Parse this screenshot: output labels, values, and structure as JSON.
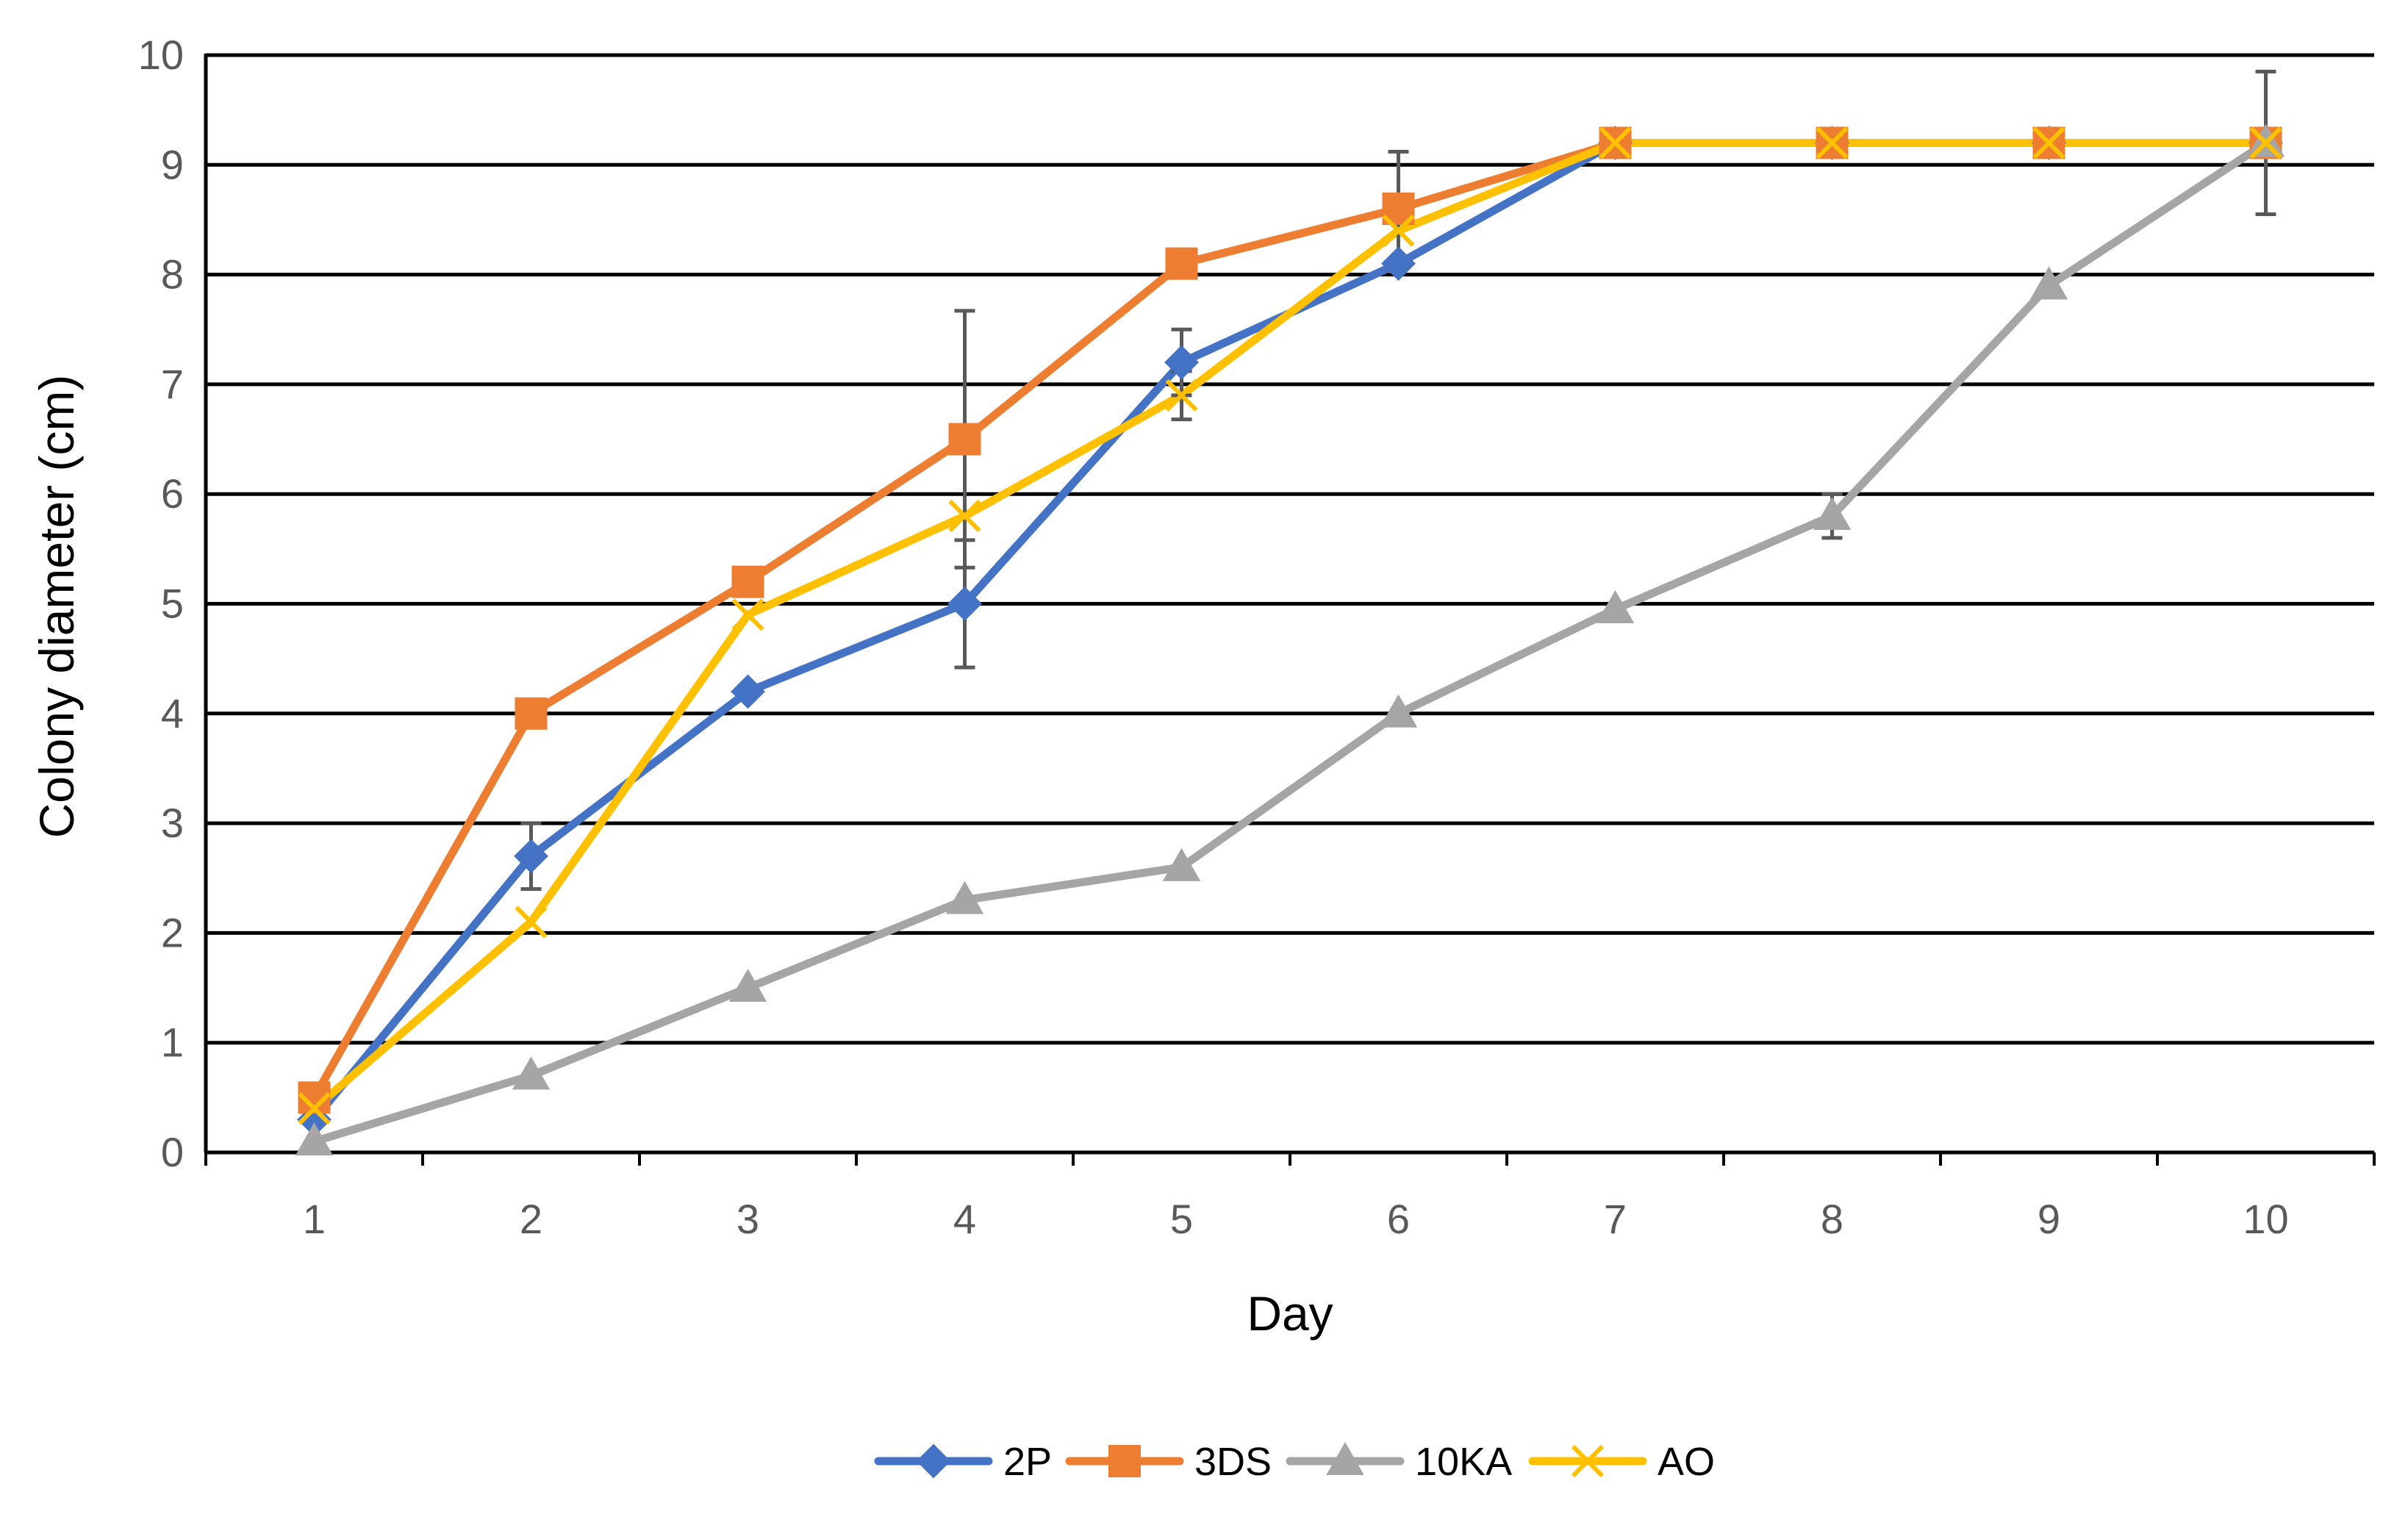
{
  "chart_data": {
    "type": "line",
    "title": "",
    "xlabel": "Day",
    "ylabel": "Colony diameter (cm)",
    "categories": [
      "1",
      "2",
      "3",
      "4",
      "5",
      "6",
      "7",
      "8",
      "9",
      "10"
    ],
    "ylim": [
      0,
      10
    ],
    "yticks": [
      "0",
      "1",
      "2",
      "3",
      "4",
      "5",
      "6",
      "7",
      "8",
      "9",
      "10"
    ],
    "grid": true,
    "legend_position": "bottom",
    "series": [
      {
        "name": "2P",
        "color": "#4472C4",
        "marker": "diamond",
        "values": [
          0.3,
          2.7,
          4.2,
          5.0,
          7.2,
          8.1,
          9.2,
          9.2,
          9.2,
          9.2
        ]
      },
      {
        "name": "3DS",
        "color": "#ED7D31",
        "marker": "square",
        "values": [
          0.5,
          4.0,
          5.2,
          6.5,
          8.1,
          8.6,
          9.2,
          9.2,
          9.2,
          9.2
        ]
      },
      {
        "name": "10KA",
        "color": "#A5A5A5",
        "marker": "triangle",
        "values": [
          0.1,
          0.7,
          1.5,
          2.3,
          2.6,
          4.0,
          4.95,
          5.8,
          7.9,
          9.2
        ]
      },
      {
        "name": "AO",
        "color": "#FFC000",
        "marker": "x",
        "values": [
          0.4,
          2.1,
          4.9,
          5.8,
          6.9,
          8.4,
          9.2,
          9.2,
          9.2,
          9.2
        ]
      }
    ],
    "error_bars": [
      {
        "series": "2P",
        "day": "2",
        "low": 2.4,
        "high": 3.0
      },
      {
        "series": "2P",
        "day": "4",
        "low": 4.42,
        "high": 5.58
      },
      {
        "series": "2P",
        "day": "5",
        "low": 6.9,
        "high": 7.5
      },
      {
        "series": "3DS",
        "day": "4",
        "low": 5.33,
        "high": 7.67
      },
      {
        "series": "3DS",
        "day": "6",
        "low": 8.1,
        "high": 9.12
      },
      {
        "series": "AO",
        "day": "5",
        "low": 6.68,
        "high": 7.12
      },
      {
        "series": "10KA",
        "day": "8",
        "low": 5.6,
        "high": 6.0
      },
      {
        "series": "AO",
        "day": "10",
        "low": 8.55,
        "high": 9.85
      }
    ],
    "error_bar_color": "#595959"
  }
}
